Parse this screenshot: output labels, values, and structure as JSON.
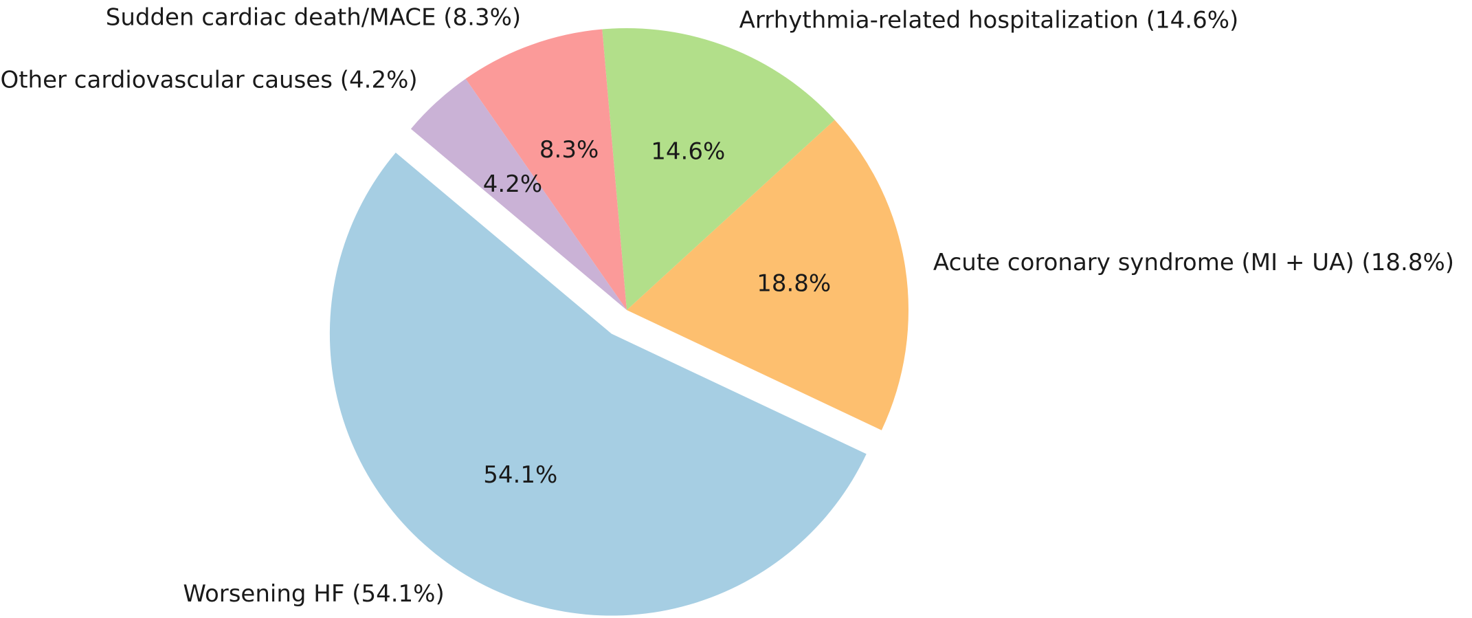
{
  "chart_data": {
    "type": "pie",
    "categories": [
      "Worsening HF (54.1%)",
      "Acute coronary syndrome (MI + UA) (18.8%)",
      "Arrhythmia-related hospitalization (14.6%)",
      "Sudden cardiac death/MACE (8.3%)",
      "Other cardiovascular causes (4.2%)"
    ],
    "values": [
      54.1,
      18.8,
      14.6,
      8.3,
      4.2
    ],
    "value_labels": [
      "54.1%",
      "18.8%",
      "14.6%",
      "8.3%",
      "4.2%"
    ],
    "colors": [
      "#a6cee3",
      "#fdbf6f",
      "#b2df8a",
      "#fb9a99",
      "#cab2d6"
    ]
  }
}
